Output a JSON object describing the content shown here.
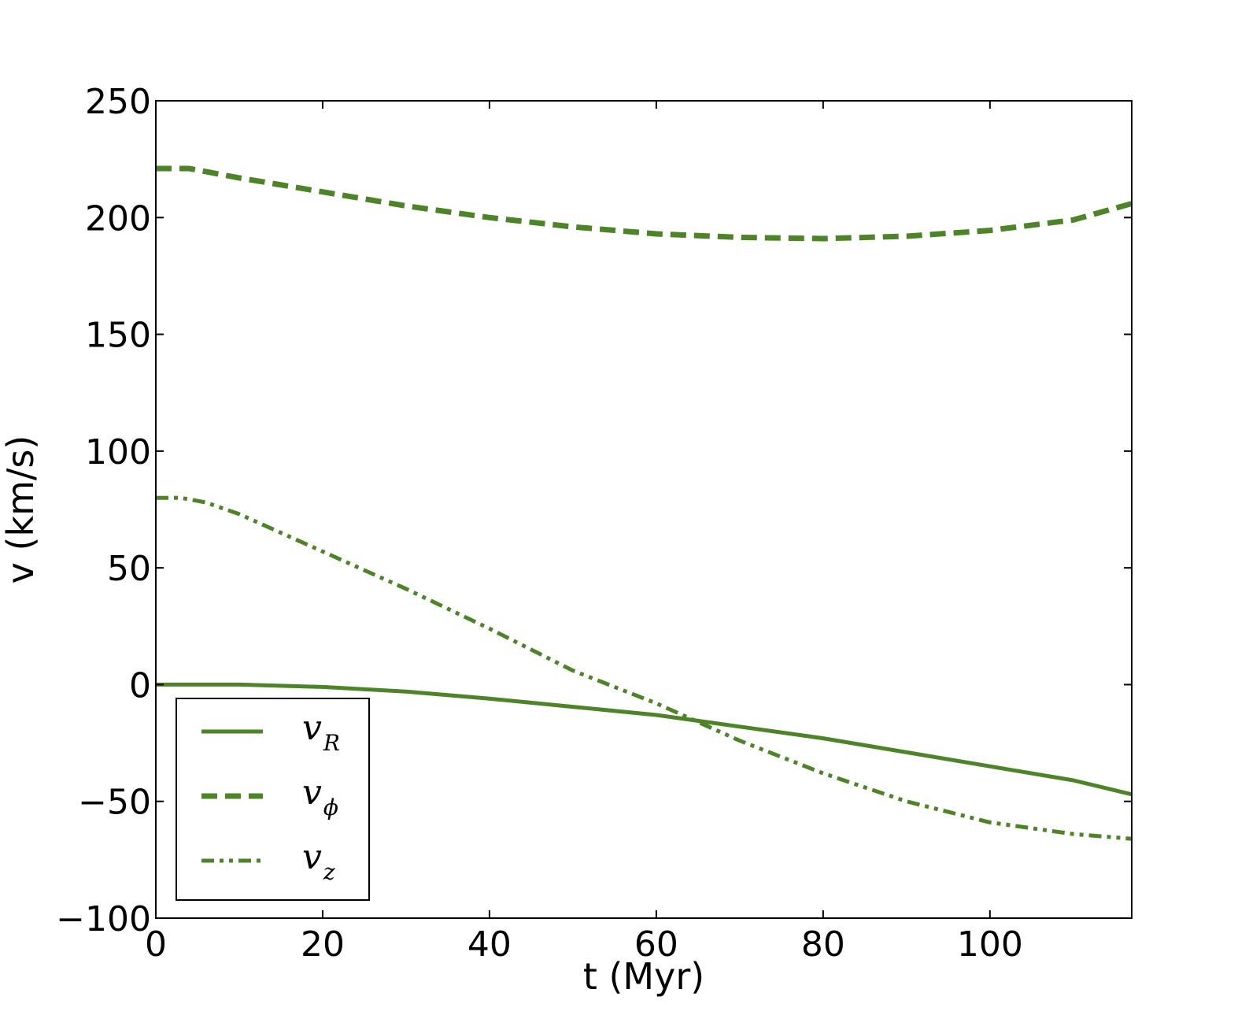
{
  "chart_data": {
    "type": "line",
    "xlabel": "t (Myr)",
    "ylabel": "v (km/s)",
    "xlim": [
      0,
      117
    ],
    "ylim": [
      -100,
      250
    ],
    "xticks": [
      "0",
      "20",
      "40",
      "60",
      "80",
      "100"
    ],
    "yticks": [
      "−100",
      "−50",
      "0",
      "50",
      "100",
      "150",
      "200",
      "250"
    ],
    "grid": false,
    "legend_position": "lower-left",
    "line_color": "#4e8428",
    "series": [
      {
        "name": "v_R",
        "legend_main": "v",
        "legend_sub": "R",
        "style": "solid",
        "x": [
          0,
          10,
          20,
          30,
          40,
          50,
          60,
          70,
          80,
          90,
          100,
          110,
          117
        ],
        "y": [
          0,
          0,
          -1,
          -3,
          -6,
          -9.5,
          -13,
          -18,
          -23,
          -29,
          -35,
          -41,
          -47
        ]
      },
      {
        "name": "v_phi",
        "legend_main": "v",
        "legend_sub": "ϕ",
        "style": "dashed",
        "x": [
          0,
          4,
          10,
          20,
          30,
          40,
          50,
          60,
          70,
          80,
          90,
          100,
          110,
          117
        ],
        "y": [
          221,
          221,
          217,
          211,
          205,
          200,
          196,
          193,
          191.5,
          191,
          192,
          194.5,
          199,
          206
        ]
      },
      {
        "name": "v_z",
        "legend_main": "v",
        "legend_sub": "z",
        "style": "dashdotdot",
        "x": [
          0,
          3,
          6,
          10,
          20,
          30,
          40,
          50,
          60,
          70,
          80,
          90,
          100,
          110,
          117
        ],
        "y": [
          80,
          80,
          78,
          73,
          57,
          41,
          24,
          6,
          -8,
          -24,
          -38,
          -50,
          -59,
          -64,
          -66
        ]
      }
    ]
  }
}
